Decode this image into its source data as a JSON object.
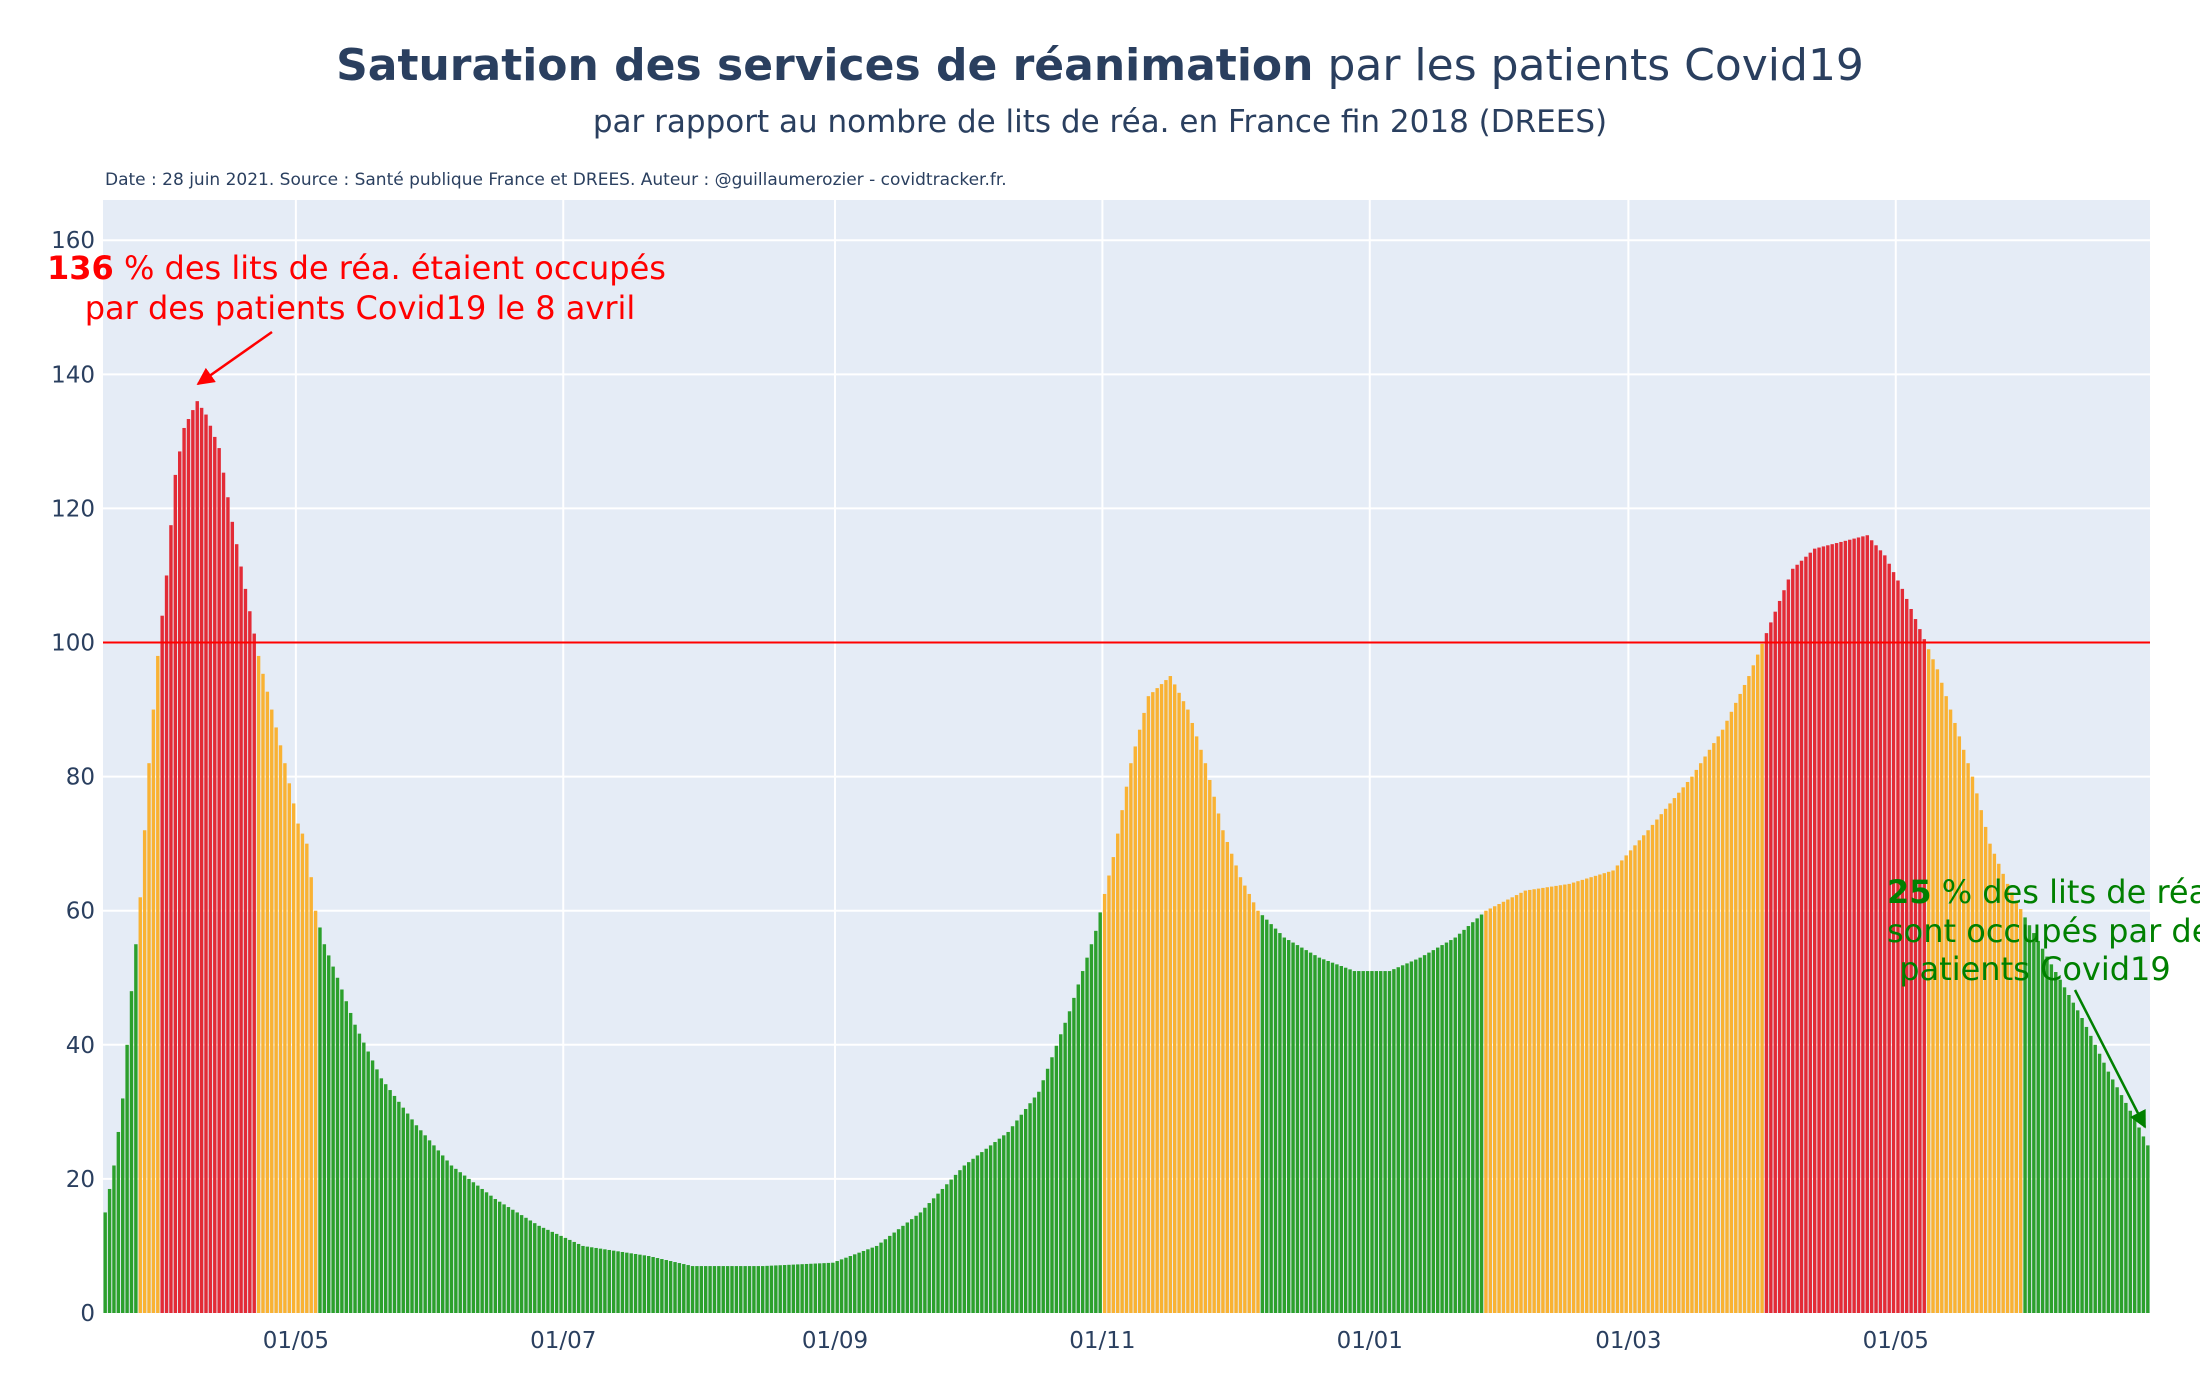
{
  "title": {
    "bold": "Saturation des services de réanimation",
    "rest": " par les patients Covid19"
  },
  "subtitle": "par rapport au nombre de lits de réa. en France fin 2018 (DREES)",
  "source_note": "Date : 28 juin 2021. Source : Santé publique France et DREES. Auteur : @guillaumerozier - covidtracker.fr.",
  "colors": {
    "background": "#e5ecf6",
    "grid": "#ffffff",
    "text": "#2a3f5f",
    "green": "#2ca02c",
    "orange": "#f9b233",
    "red": "#e32b36",
    "threshold": "#ff0000",
    "annotation_peak": "#ff0000",
    "annotation_now": "#008000"
  },
  "chart_data": {
    "type": "bar",
    "x_start": "2020-03-18",
    "x_end": "2021-06-27",
    "xaxis_ticks": [
      {
        "label": "01/05",
        "date": "2020-05-01"
      },
      {
        "label": "01/07",
        "date": "2020-07-01"
      },
      {
        "label": "01/09",
        "date": "2020-09-01"
      },
      {
        "label": "01/11",
        "date": "2020-11-01"
      },
      {
        "label": "01/01",
        "date": "2021-01-01"
      },
      {
        "label": "01/03",
        "date": "2021-03-01"
      },
      {
        "label": "01/05",
        "date": "2021-05-01"
      }
    ],
    "yaxis_ticks": [
      0,
      20,
      40,
      60,
      80,
      100,
      120,
      140,
      160
    ],
    "ylim": [
      0,
      166
    ],
    "threshold_line": 100,
    "color_rule": "green < 60 ≤ orange < 100 ≤ red",
    "series_anchors": [
      [
        "2020-03-18",
        15
      ],
      [
        "2020-03-20",
        22
      ],
      [
        "2020-03-22",
        32
      ],
      [
        "2020-03-24",
        48
      ],
      [
        "2020-03-26",
        62
      ],
      [
        "2020-03-28",
        82
      ],
      [
        "2020-03-30",
        98
      ],
      [
        "2020-04-01",
        110
      ],
      [
        "2020-04-03",
        125
      ],
      [
        "2020-04-05",
        132
      ],
      [
        "2020-04-08",
        136
      ],
      [
        "2020-04-10",
        134
      ],
      [
        "2020-04-13",
        129
      ],
      [
        "2020-04-16",
        118
      ],
      [
        "2020-04-19",
        108
      ],
      [
        "2020-04-22",
        98
      ],
      [
        "2020-04-25",
        90
      ],
      [
        "2020-04-28",
        82
      ],
      [
        "2020-05-01",
        73
      ],
      [
        "2020-05-03",
        70
      ],
      [
        "2020-05-05",
        60
      ],
      [
        "2020-05-07",
        55
      ],
      [
        "2020-05-10",
        50
      ],
      [
        "2020-05-14",
        43
      ],
      [
        "2020-05-20",
        35
      ],
      [
        "2020-05-28",
        28
      ],
      [
        "2020-06-05",
        22
      ],
      [
        "2020-06-15",
        17
      ],
      [
        "2020-06-25",
        13
      ],
      [
        "2020-07-05",
        10
      ],
      [
        "2020-07-20",
        8.5
      ],
      [
        "2020-07-30",
        7
      ],
      [
        "2020-08-15",
        7
      ],
      [
        "2020-08-31",
        7.5
      ],
      [
        "2020-09-10",
        10
      ],
      [
        "2020-09-20",
        15
      ],
      [
        "2020-09-30",
        22
      ],
      [
        "2020-10-10",
        27
      ],
      [
        "2020-10-17",
        33
      ],
      [
        "2020-10-24",
        45
      ],
      [
        "2020-10-30",
        57
      ],
      [
        "2020-11-03",
        68
      ],
      [
        "2020-11-07",
        82
      ],
      [
        "2020-11-11",
        92
      ],
      [
        "2020-11-16",
        95
      ],
      [
        "2020-11-20",
        90
      ],
      [
        "2020-11-24",
        82
      ],
      [
        "2020-11-28",
        72
      ],
      [
        "2020-12-02",
        65
      ],
      [
        "2020-12-06",
        60
      ],
      [
        "2020-12-12",
        56
      ],
      [
        "2020-12-20",
        53
      ],
      [
        "2020-12-28",
        51
      ],
      [
        "2021-01-05",
        51
      ],
      [
        "2021-01-12",
        53
      ],
      [
        "2021-01-20",
        56
      ],
      [
        "2021-01-27",
        60
      ],
      [
        "2021-02-05",
        63
      ],
      [
        "2021-02-15",
        64
      ],
      [
        "2021-02-25",
        66
      ],
      [
        "2021-03-05",
        72
      ],
      [
        "2021-03-15",
        80
      ],
      [
        "2021-03-22",
        87
      ],
      [
        "2021-03-28",
        95
      ],
      [
        "2021-04-02",
        103
      ],
      [
        "2021-04-07",
        111
      ],
      [
        "2021-04-12",
        114
      ],
      [
        "2021-04-18",
        115
      ],
      [
        "2021-04-24",
        116
      ],
      [
        "2021-04-28",
        113
      ],
      [
        "2021-05-02",
        108
      ],
      [
        "2021-05-06",
        102
      ],
      [
        "2021-05-10",
        96
      ],
      [
        "2021-05-14",
        88
      ],
      [
        "2021-05-18",
        80
      ],
      [
        "2021-05-22",
        70
      ],
      [
        "2021-05-26",
        64
      ],
      [
        "2021-05-30",
        59
      ],
      [
        "2021-06-05",
        52
      ],
      [
        "2021-06-12",
        44
      ],
      [
        "2021-06-18",
        36
      ],
      [
        "2021-06-24",
        29
      ],
      [
        "2021-06-27",
        25
      ]
    ]
  },
  "annotations": {
    "peak": {
      "value": "136",
      "line1_rest": " % des lits de réa. étaient occupés",
      "line2": "par des patients Covid19 le 8 avril"
    },
    "now": {
      "value": "25",
      "line1_rest": " % des lits de réa.",
      "line2": "sont occupés par des",
      "line3": "patients Covid19"
    }
  }
}
